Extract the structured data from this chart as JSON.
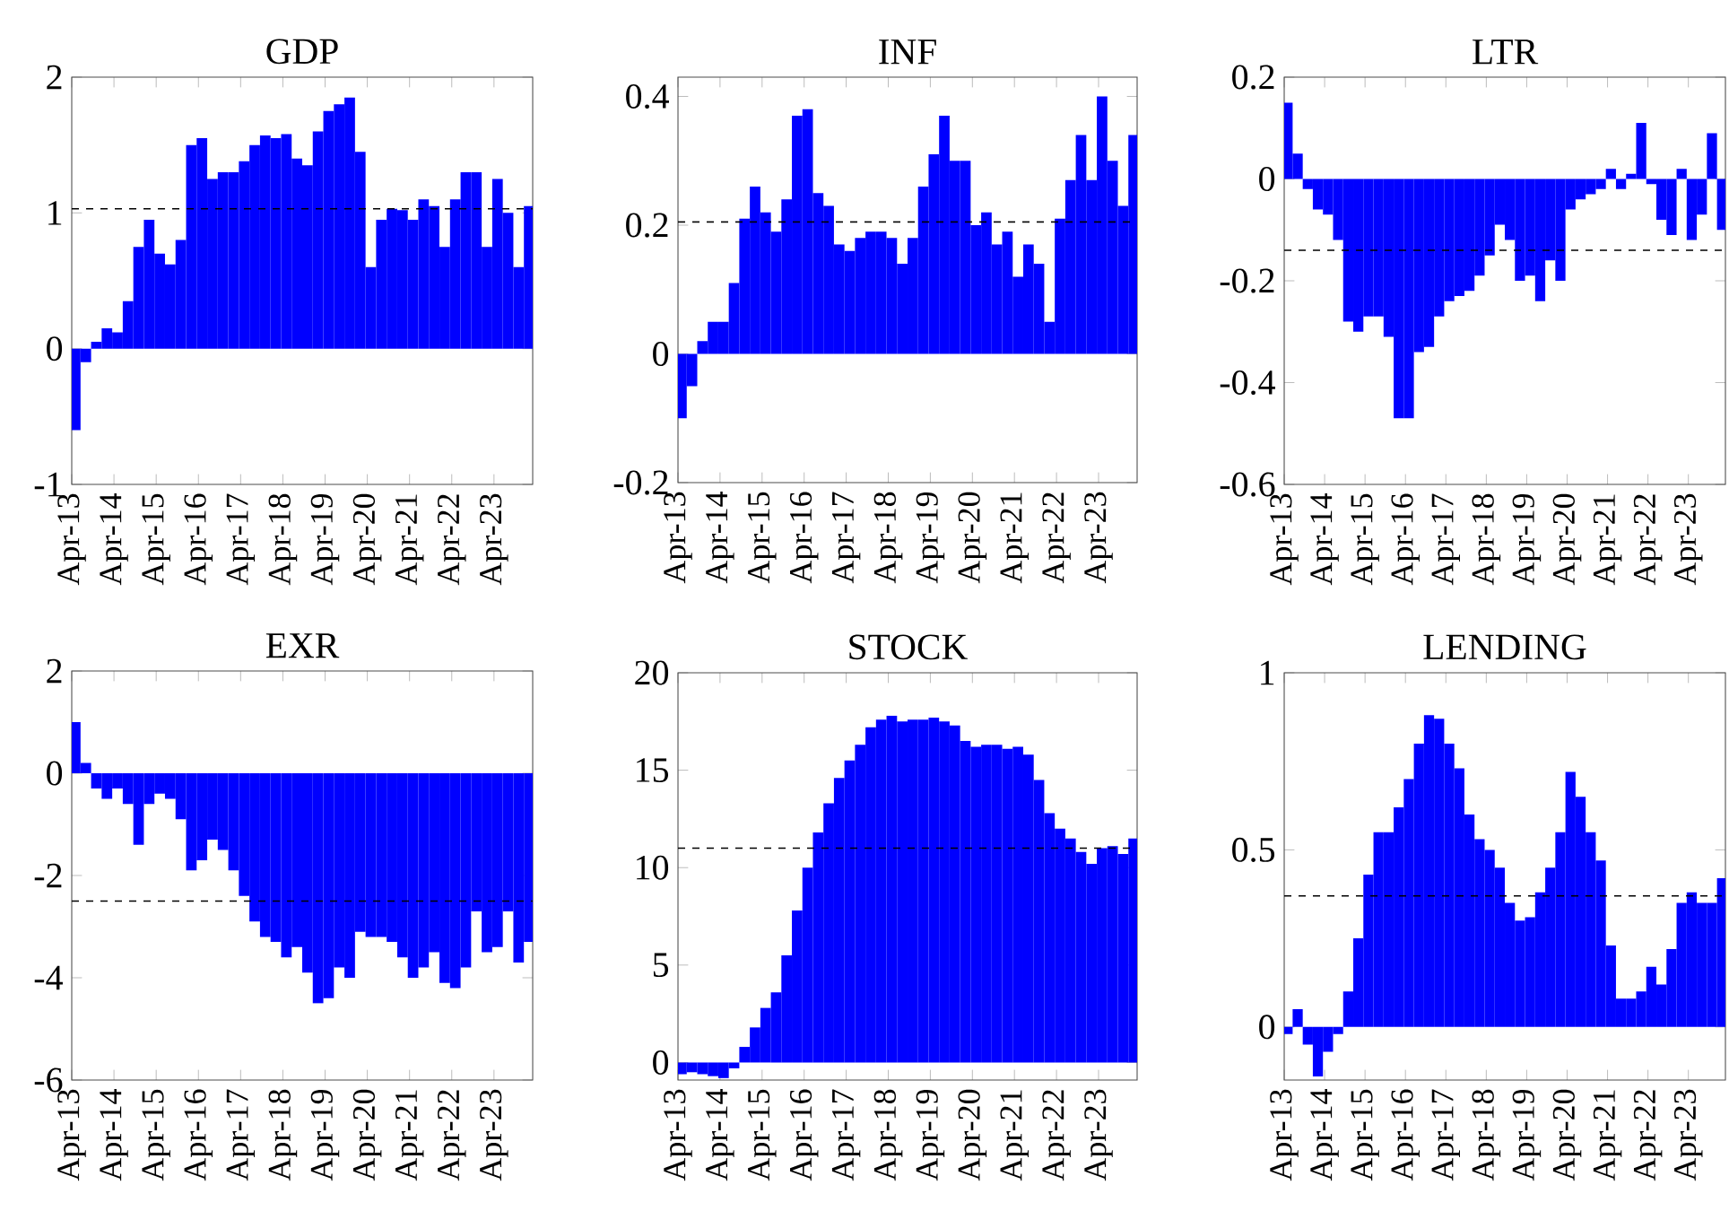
{
  "chart_data": [
    {
      "type": "bar",
      "title": "GDP",
      "color": "#0000ff",
      "xlim": [
        "2013-04",
        "2024-03"
      ],
      "ylim": [
        -1,
        2
      ],
      "yticks": [
        -1,
        0,
        1,
        2
      ],
      "xticks": [
        {
          "value": "2013-04",
          "label": "Apr-13"
        },
        {
          "value": "2014-04",
          "label": "Apr-14"
        },
        {
          "value": "2015-04",
          "label": "Apr-15"
        },
        {
          "value": "2016-04",
          "label": "Apr-16"
        },
        {
          "value": "2017-04",
          "label": "Apr-17"
        },
        {
          "value": "2018-04",
          "label": "Apr-18"
        },
        {
          "value": "2019-04",
          "label": "Apr-19"
        },
        {
          "value": "2020-04",
          "label": "Apr-20"
        },
        {
          "value": "2021-04",
          "label": "Apr-21"
        },
        {
          "value": "2022-04",
          "label": "Apr-22"
        },
        {
          "value": "2023-04",
          "label": "Apr-23"
        }
      ],
      "x": [
        "2013-05",
        "2013-08",
        "2013-11",
        "2014-02",
        "2014-05",
        "2014-08",
        "2014-11",
        "2015-02",
        "2015-05",
        "2015-08",
        "2015-11",
        "2016-02",
        "2016-05",
        "2016-08",
        "2016-11",
        "2017-02",
        "2017-05",
        "2017-08",
        "2017-11",
        "2018-02",
        "2018-05",
        "2018-08",
        "2018-11",
        "2019-02",
        "2019-05",
        "2019-08",
        "2019-11",
        "2020-02",
        "2020-05",
        "2020-08",
        "2020-11",
        "2021-02",
        "2021-05",
        "2021-08",
        "2021-11",
        "2022-02",
        "2022-05",
        "2022-08",
        "2022-11",
        "2023-02",
        "2023-05",
        "2023-08",
        "2023-11",
        "2024-02"
      ],
      "values": [
        -0.6,
        -0.1,
        0.05,
        0.15,
        0.12,
        0.35,
        0.75,
        0.95,
        0.7,
        0.62,
        0.8,
        1.5,
        1.55,
        1.25,
        1.3,
        1.3,
        1.38,
        1.5,
        1.57,
        1.55,
        1.58,
        1.4,
        1.35,
        1.6,
        1.75,
        1.8,
        1.85,
        1.45,
        0.6,
        0.95,
        1.03,
        1.02,
        0.95,
        1.1,
        1.05,
        0.75,
        1.1,
        1.3,
        1.3,
        0.75,
        1.25,
        1.0,
        0.6,
        1.05
      ],
      "ref_lines": [
        {
          "axis": "y",
          "value": 1.03,
          "line_style": "dashed",
          "color": "#000000"
        }
      ]
    },
    {
      "type": "bar",
      "title": "INF",
      "color": "#0000ff",
      "xlim": [
        "2013-04",
        "2024-03"
      ],
      "ylim": [
        -0.2,
        0.43
      ],
      "yticks": [
        -0.2,
        0,
        0.2,
        0.4
      ],
      "xticks": [
        {
          "value": "2013-04",
          "label": "Apr-13"
        },
        {
          "value": "2014-04",
          "label": "Apr-14"
        },
        {
          "value": "2015-04",
          "label": "Apr-15"
        },
        {
          "value": "2016-04",
          "label": "Apr-16"
        },
        {
          "value": "2017-04",
          "label": "Apr-17"
        },
        {
          "value": "2018-04",
          "label": "Apr-18"
        },
        {
          "value": "2019-04",
          "label": "Apr-19"
        },
        {
          "value": "2020-04",
          "label": "Apr-20"
        },
        {
          "value": "2021-04",
          "label": "Apr-21"
        },
        {
          "value": "2022-04",
          "label": "Apr-22"
        },
        {
          "value": "2023-04",
          "label": "Apr-23"
        }
      ],
      "x": [
        "2013-05",
        "2013-08",
        "2013-11",
        "2014-02",
        "2014-05",
        "2014-08",
        "2014-11",
        "2015-02",
        "2015-05",
        "2015-08",
        "2015-11",
        "2016-02",
        "2016-05",
        "2016-08",
        "2016-11",
        "2017-02",
        "2017-05",
        "2017-08",
        "2017-11",
        "2018-02",
        "2018-05",
        "2018-08",
        "2018-11",
        "2019-02",
        "2019-05",
        "2019-08",
        "2019-11",
        "2020-02",
        "2020-05",
        "2020-08",
        "2020-11",
        "2021-02",
        "2021-05",
        "2021-08",
        "2021-11",
        "2022-02",
        "2022-05",
        "2022-08",
        "2022-11",
        "2023-02",
        "2023-05",
        "2023-08",
        "2023-11",
        "2024-02"
      ],
      "values": [
        -0.1,
        -0.05,
        0.02,
        0.05,
        0.05,
        0.11,
        0.21,
        0.26,
        0.22,
        0.19,
        0.24,
        0.37,
        0.38,
        0.25,
        0.23,
        0.17,
        0.16,
        0.18,
        0.19,
        0.19,
        0.18,
        0.14,
        0.18,
        0.26,
        0.31,
        0.37,
        0.3,
        0.3,
        0.2,
        0.22,
        0.17,
        0.19,
        0.12,
        0.17,
        0.14,
        0.05,
        0.21,
        0.27,
        0.34,
        0.27,
        0.4,
        0.3,
        0.23,
        0.34
      ],
      "ref_lines": [
        {
          "axis": "y",
          "value": 0.205,
          "line_style": "dashed",
          "color": "#000000"
        }
      ]
    },
    {
      "type": "bar",
      "title": "LTR",
      "color": "#0000ff",
      "xlim": [
        "2013-04",
        "2024-03"
      ],
      "ylim": [
        -0.6,
        0.2
      ],
      "yticks": [
        -0.6,
        -0.4,
        -0.2,
        0,
        0.2
      ],
      "xticks": [
        {
          "value": "2013-04",
          "label": "Apr-13"
        },
        {
          "value": "2014-04",
          "label": "Apr-14"
        },
        {
          "value": "2015-04",
          "label": "Apr-15"
        },
        {
          "value": "2016-04",
          "label": "Apr-16"
        },
        {
          "value": "2017-04",
          "label": "Apr-17"
        },
        {
          "value": "2018-04",
          "label": "Apr-18"
        },
        {
          "value": "2019-04",
          "label": "Apr-19"
        },
        {
          "value": "2020-04",
          "label": "Apr-20"
        },
        {
          "value": "2021-04",
          "label": "Apr-21"
        },
        {
          "value": "2022-04",
          "label": "Apr-22"
        },
        {
          "value": "2023-04",
          "label": "Apr-23"
        }
      ],
      "x": [
        "2013-05",
        "2013-08",
        "2013-11",
        "2014-02",
        "2014-05",
        "2014-08",
        "2014-11",
        "2015-02",
        "2015-05",
        "2015-08",
        "2015-11",
        "2016-02",
        "2016-05",
        "2016-08",
        "2016-11",
        "2017-02",
        "2017-05",
        "2017-08",
        "2017-11",
        "2018-02",
        "2018-05",
        "2018-08",
        "2018-11",
        "2019-02",
        "2019-05",
        "2019-08",
        "2019-11",
        "2020-02",
        "2020-05",
        "2020-08",
        "2020-11",
        "2021-02",
        "2021-05",
        "2021-08",
        "2021-11",
        "2022-02",
        "2022-05",
        "2022-08",
        "2022-11",
        "2023-02",
        "2023-05",
        "2023-08",
        "2023-11",
        "2024-02"
      ],
      "values": [
        0.15,
        0.05,
        -0.02,
        -0.06,
        -0.07,
        -0.12,
        -0.28,
        -0.3,
        -0.27,
        -0.27,
        -0.31,
        -0.47,
        -0.47,
        -0.34,
        -0.33,
        -0.27,
        -0.24,
        -0.23,
        -0.22,
        -0.19,
        -0.15,
        -0.09,
        -0.12,
        -0.2,
        -0.19,
        -0.24,
        -0.16,
        -0.2,
        -0.06,
        -0.04,
        -0.03,
        -0.02,
        0.02,
        -0.02,
        0.01,
        0.11,
        -0.01,
        -0.08,
        -0.11,
        0.02,
        -0.12,
        -0.07,
        0.09,
        -0.1
      ],
      "ref_lines": [
        {
          "axis": "y",
          "value": -0.14,
          "line_style": "dashed",
          "color": "#000000"
        }
      ]
    },
    {
      "type": "bar",
      "title": "EXR",
      "color": "#0000ff",
      "xlim": [
        "2013-04",
        "2024-03"
      ],
      "ylim": [
        -6,
        2
      ],
      "yticks": [
        -6,
        -4,
        -2,
        0,
        2
      ],
      "xticks": [
        {
          "value": "2013-04",
          "label": "Apr-13"
        },
        {
          "value": "2014-04",
          "label": "Apr-14"
        },
        {
          "value": "2015-04",
          "label": "Apr-15"
        },
        {
          "value": "2016-04",
          "label": "Apr-16"
        },
        {
          "value": "2017-04",
          "label": "Apr-17"
        },
        {
          "value": "2018-04",
          "label": "Apr-18"
        },
        {
          "value": "2019-04",
          "label": "Apr-19"
        },
        {
          "value": "2020-04",
          "label": "Apr-20"
        },
        {
          "value": "2021-04",
          "label": "Apr-21"
        },
        {
          "value": "2022-04",
          "label": "Apr-22"
        },
        {
          "value": "2023-04",
          "label": "Apr-23"
        }
      ],
      "x": [
        "2013-05",
        "2013-08",
        "2013-11",
        "2014-02",
        "2014-05",
        "2014-08",
        "2014-11",
        "2015-02",
        "2015-05",
        "2015-08",
        "2015-11",
        "2016-02",
        "2016-05",
        "2016-08",
        "2016-11",
        "2017-02",
        "2017-05",
        "2017-08",
        "2017-11",
        "2018-02",
        "2018-05",
        "2018-08",
        "2018-11",
        "2019-02",
        "2019-05",
        "2019-08",
        "2019-11",
        "2020-02",
        "2020-05",
        "2020-08",
        "2020-11",
        "2021-02",
        "2021-05",
        "2021-08",
        "2021-11",
        "2022-02",
        "2022-05",
        "2022-08",
        "2022-11",
        "2023-02",
        "2023-05",
        "2023-08",
        "2023-11",
        "2024-02"
      ],
      "values": [
        1.0,
        0.2,
        -0.3,
        -0.5,
        -0.3,
        -0.6,
        -1.4,
        -0.6,
        -0.4,
        -0.5,
        -0.9,
        -1.9,
        -1.7,
        -1.3,
        -1.5,
        -1.9,
        -2.4,
        -2.9,
        -3.2,
        -3.3,
        -3.6,
        -3.4,
        -3.9,
        -4.5,
        -4.4,
        -3.8,
        -4.0,
        -3.1,
        -3.2,
        -3.2,
        -3.3,
        -3.6,
        -4.0,
        -3.8,
        -3.5,
        -4.1,
        -4.2,
        -3.8,
        -2.7,
        -3.5,
        -3.4,
        -2.7,
        -3.7,
        -3.3
      ],
      "ref_lines": [
        {
          "axis": "y",
          "value": -2.5,
          "line_style": "dashed",
          "color": "#000000"
        }
      ]
    },
    {
      "type": "bar",
      "title": "STOCK",
      "color": "#0000ff",
      "xlim": [
        "2013-04",
        "2024-03"
      ],
      "ylim": [
        -0.9,
        20
      ],
      "yticks": [
        0,
        5,
        10,
        15,
        20
      ],
      "xticks": [
        {
          "value": "2013-04",
          "label": "Apr-13"
        },
        {
          "value": "2014-04",
          "label": "Apr-14"
        },
        {
          "value": "2015-04",
          "label": "Apr-15"
        },
        {
          "value": "2016-04",
          "label": "Apr-16"
        },
        {
          "value": "2017-04",
          "label": "Apr-17"
        },
        {
          "value": "2018-04",
          "label": "Apr-18"
        },
        {
          "value": "2019-04",
          "label": "Apr-19"
        },
        {
          "value": "2020-04",
          "label": "Apr-20"
        },
        {
          "value": "2021-04",
          "label": "Apr-21"
        },
        {
          "value": "2022-04",
          "label": "Apr-22"
        },
        {
          "value": "2023-04",
          "label": "Apr-23"
        }
      ],
      "x": [
        "2013-05",
        "2013-08",
        "2013-11",
        "2014-02",
        "2014-05",
        "2014-08",
        "2014-11",
        "2015-02",
        "2015-05",
        "2015-08",
        "2015-11",
        "2016-02",
        "2016-05",
        "2016-08",
        "2016-11",
        "2017-02",
        "2017-05",
        "2017-08",
        "2017-11",
        "2018-02",
        "2018-05",
        "2018-08",
        "2018-11",
        "2019-02",
        "2019-05",
        "2019-08",
        "2019-11",
        "2020-02",
        "2020-05",
        "2020-08",
        "2020-11",
        "2021-02",
        "2021-05",
        "2021-08",
        "2021-11",
        "2022-02",
        "2022-05",
        "2022-08",
        "2022-11",
        "2023-02",
        "2023-05",
        "2023-08",
        "2023-11",
        "2024-02"
      ],
      "values": [
        -0.6,
        -0.5,
        -0.6,
        -0.7,
        -0.8,
        -0.3,
        0.8,
        1.8,
        2.8,
        3.6,
        5.5,
        7.8,
        10,
        11.8,
        13.3,
        14.6,
        15.5,
        16.3,
        17.2,
        17.6,
        17.8,
        17.5,
        17.6,
        17.6,
        17.7,
        17.5,
        17.3,
        16.5,
        16.2,
        16.3,
        16.3,
        16.1,
        16.2,
        15.8,
        14.5,
        12.8,
        12.0,
        11.5,
        10.8,
        10.2,
        11.0,
        11.1,
        10.7,
        11.5
      ],
      "ref_lines": [
        {
          "axis": "y",
          "value": 11,
          "line_style": "dashed",
          "color": "#000000"
        }
      ]
    },
    {
      "type": "bar",
      "title": "LENDING",
      "color": "#0000ff",
      "xlim": [
        "2013-04",
        "2024-03"
      ],
      "ylim": [
        -0.15,
        1
      ],
      "yticks": [
        0,
        0.5,
        1
      ],
      "xticks": [
        {
          "value": "2013-04",
          "label": "Apr-13"
        },
        {
          "value": "2014-04",
          "label": "Apr-14"
        },
        {
          "value": "2015-04",
          "label": "Apr-15"
        },
        {
          "value": "2016-04",
          "label": "Apr-16"
        },
        {
          "value": "2017-04",
          "label": "Apr-17"
        },
        {
          "value": "2018-04",
          "label": "Apr-18"
        },
        {
          "value": "2019-04",
          "label": "Apr-19"
        },
        {
          "value": "2020-04",
          "label": "Apr-20"
        },
        {
          "value": "2021-04",
          "label": "Apr-21"
        },
        {
          "value": "2022-04",
          "label": "Apr-22"
        },
        {
          "value": "2023-04",
          "label": "Apr-23"
        }
      ],
      "x": [
        "2013-05",
        "2013-08",
        "2013-11",
        "2014-02",
        "2014-05",
        "2014-08",
        "2014-11",
        "2015-02",
        "2015-05",
        "2015-08",
        "2015-11",
        "2016-02",
        "2016-05",
        "2016-08",
        "2016-11",
        "2017-02",
        "2017-05",
        "2017-08",
        "2017-11",
        "2018-02",
        "2018-05",
        "2018-08",
        "2018-11",
        "2019-02",
        "2019-05",
        "2019-08",
        "2019-11",
        "2020-02",
        "2020-05",
        "2020-08",
        "2020-11",
        "2021-02",
        "2021-05",
        "2021-08",
        "2021-11",
        "2022-02",
        "2022-05",
        "2022-08",
        "2022-11",
        "2023-02",
        "2023-05",
        "2023-08",
        "2023-11",
        "2024-02"
      ],
      "values": [
        -0.02,
        0.05,
        -0.05,
        -0.14,
        -0.07,
        -0.02,
        0.1,
        0.25,
        0.43,
        0.55,
        0.55,
        0.62,
        0.7,
        0.8,
        0.88,
        0.87,
        0.8,
        0.73,
        0.6,
        0.53,
        0.5,
        0.45,
        0.35,
        0.3,
        0.31,
        0.38,
        0.45,
        0.55,
        0.72,
        0.65,
        0.55,
        0.47,
        0.23,
        0.08,
        0.08,
        0.1,
        0.17,
        0.12,
        0.22,
        0.35,
        0.38,
        0.35,
        0.35,
        0.42
      ],
      "ref_lines": [
        {
          "axis": "y",
          "value": 0.37,
          "line_style": "dashed",
          "color": "#000000"
        }
      ]
    }
  ]
}
